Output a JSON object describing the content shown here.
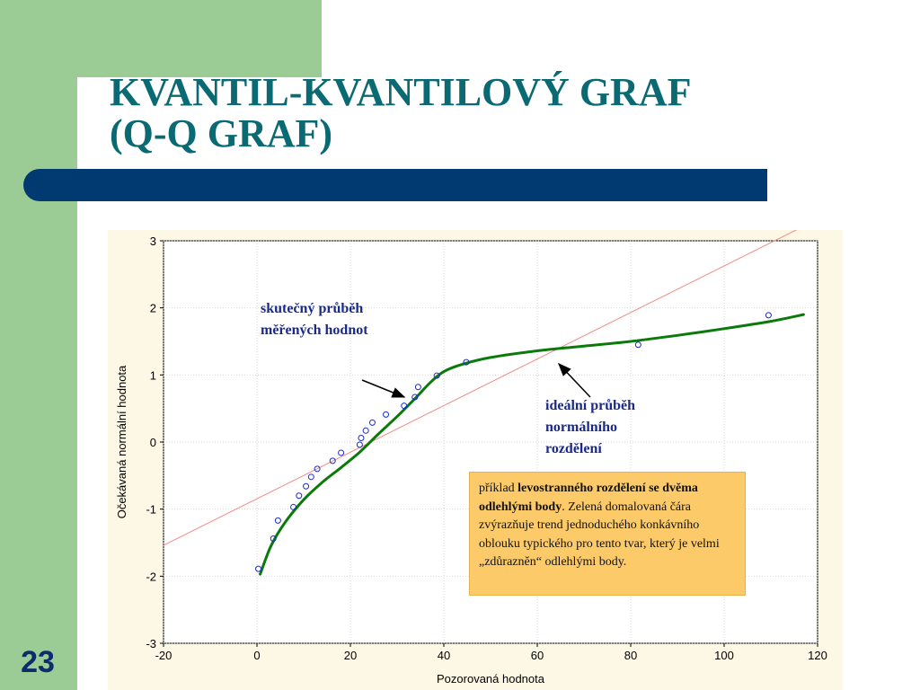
{
  "slide": {
    "title_line1": "KVANTIL-KVANTILOVÝ GRAF",
    "title_line2": "(Q-Q GRAF)",
    "page_number": "23",
    "colors": {
      "band": "#9ccc95",
      "title": "#0a6a74",
      "bar": "#003a70",
      "note_bg": "#fcca68"
    }
  },
  "chart_data": {
    "type": "scatter",
    "xlabel": "Pozorovaná hodnota",
    "ylabel": "Očekávaná normální hodnota",
    "xlim": [
      -20,
      120
    ],
    "ylim": [
      -3,
      3
    ],
    "xticks": [
      "-20",
      "0",
      "20",
      "40",
      "60",
      "80",
      "100",
      "120"
    ],
    "yticks": [
      "3",
      "2",
      "1",
      "0",
      "-1",
      "-2",
      "-3"
    ],
    "grid": true,
    "points": {
      "x": [
        0.3,
        3.5,
        4.5,
        7.8,
        9.0,
        10.5,
        11.6,
        12.9,
        16.2,
        18.0,
        22.0,
        22.3,
        23.3,
        24.7,
        27.6,
        31.5,
        33.8,
        34.5,
        38.5,
        44.8,
        81.6,
        109.5
      ],
      "y": [
        -1.89,
        -1.44,
        -1.17,
        -0.97,
        -0.8,
        -0.66,
        -0.52,
        -0.4,
        -0.28,
        -0.16,
        -0.04,
        0.06,
        0.17,
        0.29,
        0.41,
        0.54,
        0.67,
        0.82,
        0.99,
        1.19,
        1.45,
        1.89
      ]
    },
    "reference_line": {
      "x": [
        -20,
        120
      ],
      "y": [
        -1.54,
        3.32
      ]
    },
    "trend_curve": {
      "x": [
        0.7,
        3,
        6,
        10,
        14,
        18,
        22,
        26,
        30,
        34,
        37,
        40,
        44,
        50,
        60,
        70,
        80,
        90,
        100,
        110,
        117
      ],
      "y": [
        -1.97,
        -1.55,
        -1.2,
        -0.86,
        -0.6,
        -0.38,
        -0.15,
        0.12,
        0.38,
        0.66,
        0.88,
        1.05,
        1.16,
        1.26,
        1.36,
        1.43,
        1.5,
        1.59,
        1.69,
        1.8,
        1.9
      ]
    },
    "annotations": {
      "measured_line1": "skutečný průběh",
      "measured_line2": "měřených hodnot",
      "ideal_line1": "ideální průběh",
      "ideal_line2": "normálního",
      "ideal_line3": "rozdělení"
    },
    "note": {
      "prefix": "příklad ",
      "bold": "levostranného rozdělení se dvěma odlehlými body",
      "rest": ". Zelená domalovaná čára zvýrazňuje trend jednoduchého konkávního oblouku typického pro tento tvar, který je velmi „zdůrazněn“ odlehlými body."
    }
  }
}
